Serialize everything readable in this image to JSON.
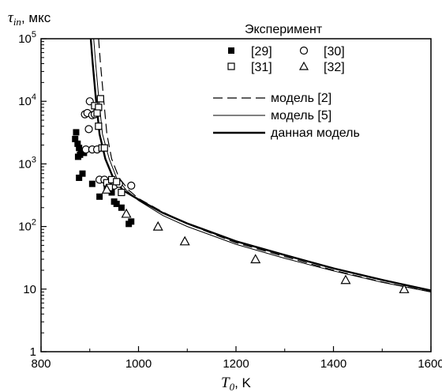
{
  "chart_data": {
    "type": "scatter",
    "xlabel": {
      "symbol": "T",
      "sub": "0",
      "unit": ", K"
    },
    "ylabel": {
      "symbol": "τ",
      "sub": "in",
      "unit": ", мкс"
    },
    "xlim": [
      800,
      1600
    ],
    "ylim": [
      1,
      100000
    ],
    "yscale": "log",
    "x_ticks": [
      "800",
      "1000",
      "1200",
      "1400",
      "1600"
    ],
    "y_ticks": [
      {
        "value": 1,
        "base": "1",
        "exp": ""
      },
      {
        "value": 10,
        "base": "10",
        "exp": ""
      },
      {
        "value": 100,
        "base": "10",
        "exp": "2"
      },
      {
        "value": 1000,
        "base": "10",
        "exp": "3"
      },
      {
        "value": 10000,
        "base": "10",
        "exp": "4"
      },
      {
        "value": 100000,
        "base": "10",
        "exp": "5"
      }
    ],
    "legend_title": "Эксперимент",
    "scatter_series": [
      {
        "name": "[29]",
        "marker": "filled-square",
        "points": [
          [
            872,
            3200
          ],
          [
            870,
            2500
          ],
          [
            875,
            2100
          ],
          [
            878,
            1800
          ],
          [
            882,
            1600
          ],
          [
            880,
            1400
          ],
          [
            876,
            1300
          ],
          [
            878,
            600
          ],
          [
            885,
            700
          ],
          [
            888,
            1500
          ],
          [
            905,
            480
          ],
          [
            920,
            300
          ],
          [
            935,
            420
          ],
          [
            945,
            350
          ],
          [
            950,
            250
          ],
          [
            955,
            230
          ],
          [
            965,
            200
          ],
          [
            980,
            110
          ],
          [
            985,
            120
          ]
        ]
      },
      {
        "name": "[31]",
        "marker": "open-circle",
        "points": [
          [
            890,
            6200
          ],
          [
            895,
            6500
          ],
          [
            900,
            10000
          ],
          [
            905,
            6000
          ],
          [
            910,
            6200
          ],
          [
            898,
            3600
          ],
          [
            892,
            1700
          ],
          [
            905,
            1700
          ],
          [
            915,
            1700
          ],
          [
            920,
            560
          ],
          [
            930,
            560
          ],
          [
            950,
            450
          ],
          [
            960,
            480
          ],
          [
            985,
            450
          ]
        ]
      },
      {
        "name": "[30]",
        "marker": "open-square",
        "points": [
          [
            910,
            8500
          ],
          [
            918,
            8000
          ],
          [
            922,
            11000
          ],
          [
            915,
            6500
          ],
          [
            918,
            4000
          ],
          [
            925,
            1800
          ],
          [
            930,
            1800
          ],
          [
            935,
            500
          ],
          [
            940,
            420
          ],
          [
            945,
            560
          ],
          [
            955,
            520
          ],
          [
            965,
            350
          ]
        ]
      },
      {
        "name": "[32]",
        "marker": "open-triangle",
        "points": [
          [
            935,
            390
          ],
          [
            975,
            160
          ],
          [
            1040,
            100
          ],
          [
            1095,
            58
          ],
          [
            1240,
            30
          ],
          [
            1425,
            14
          ],
          [
            1545,
            10
          ]
        ]
      }
    ],
    "line_series": [
      {
        "name": "модель [2]",
        "style": "dashed",
        "points": [
          [
            918,
            100000
          ],
          [
            922,
            40000
          ],
          [
            928,
            12000
          ],
          [
            935,
            3000
          ],
          [
            945,
            1200
          ],
          [
            960,
            600
          ],
          [
            980,
            380
          ],
          [
            1000,
            280
          ],
          [
            1050,
            170
          ],
          [
            1100,
            110
          ],
          [
            1200,
            55
          ],
          [
            1300,
            33
          ],
          [
            1400,
            20
          ],
          [
            1500,
            13
          ],
          [
            1600,
            9
          ]
        ]
      },
      {
        "name": "модель [5]",
        "style": "thin",
        "points": [
          [
            908,
            100000
          ],
          [
            912,
            40000
          ],
          [
            918,
            12000
          ],
          [
            926,
            3000
          ],
          [
            940,
            1200
          ],
          [
            955,
            600
          ],
          [
            975,
            380
          ],
          [
            1000,
            260
          ],
          [
            1050,
            150
          ],
          [
            1100,
            100
          ],
          [
            1200,
            52
          ],
          [
            1300,
            31
          ],
          [
            1400,
            19.5
          ],
          [
            1500,
            12.8
          ],
          [
            1600,
            9
          ]
        ]
      },
      {
        "name": "данная модель",
        "style": "thick",
        "points": [
          [
            902,
            100000
          ],
          [
            906,
            40000
          ],
          [
            912,
            12000
          ],
          [
            920,
            3000
          ],
          [
            932,
            1200
          ],
          [
            948,
            600
          ],
          [
            968,
            380
          ],
          [
            1000,
            270
          ],
          [
            1050,
            165
          ],
          [
            1100,
            112
          ],
          [
            1200,
            58
          ],
          [
            1300,
            35
          ],
          [
            1400,
            21.5
          ],
          [
            1500,
            14
          ],
          [
            1600,
            9.5
          ]
        ]
      }
    ]
  }
}
